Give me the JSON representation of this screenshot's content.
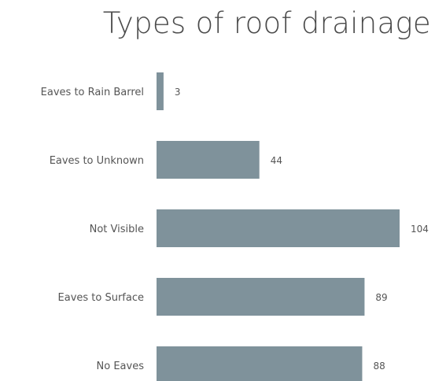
{
  "chart_data": {
    "type": "bar",
    "orientation": "horizontal",
    "title": "Types of roof drainage",
    "xlabel": "",
    "ylabel": "",
    "categories": [
      "Eaves to Rain Barrel",
      "Eaves to Unknown",
      "Not Visible",
      "Eaves to Surface",
      "No Eaves"
    ],
    "values": [
      3,
      44,
      104,
      89,
      88
    ],
    "xlim": [
      0,
      104
    ],
    "bar_color": "#7f929b",
    "grid": false,
    "legend": "none",
    "data_labels": true
  }
}
